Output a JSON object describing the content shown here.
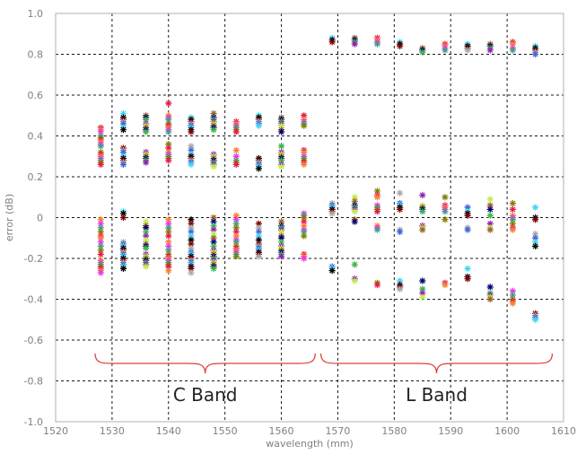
{
  "chart_data": {
    "type": "scatter",
    "title": "",
    "xlabel": "wavelength (mm)",
    "ylabel": "error (dB)",
    "xlim": [
      1520,
      1610
    ],
    "ylim": [
      -1.0,
      1.0
    ],
    "x_ticks": [
      "1520",
      "1530",
      "1540",
      "1550",
      "1560",
      "1570",
      "1580",
      "1590",
      "1600",
      "1610"
    ],
    "y_ticks": [
      "1.0",
      "0.8",
      "0.6",
      "0.4",
      "0.2",
      "0",
      "-0.2",
      "-0.4",
      "-0.6",
      "-0.8",
      "-1.0"
    ],
    "grid": true,
    "marker": "*",
    "colors": [
      "#e6194b",
      "#3cb44b",
      "#4363d8",
      "#f58231",
      "#911eb4",
      "#42d4f4",
      "#f032e6",
      "#bfef45",
      "#000000",
      "#469990",
      "#9a6324",
      "#800000",
      "#808000",
      "#000075",
      "#a9a9a9"
    ],
    "annotations": [
      {
        "text": "C Band",
        "x_range": [
          1527,
          1566
        ],
        "brace_color": "#e03c3c"
      },
      {
        "text": "L Band",
        "x_range": [
          1567,
          1608
        ],
        "brace_color": "#e03c3c"
      }
    ],
    "clusters": [
      {
        "x": 1528,
        "ys": [
          0.44,
          0.43,
          0.42,
          0.4,
          0.39,
          0.38,
          0.37,
          0.36,
          0.35,
          0.32,
          0.31,
          0.3,
          0.29,
          0.28,
          0.27,
          0.26,
          -0.01,
          -0.03,
          -0.05,
          -0.07,
          -0.09,
          -0.1,
          -0.12,
          -0.14,
          -0.16,
          -0.18,
          -0.21,
          -0.22,
          -0.23,
          -0.24,
          -0.25,
          -0.26,
          -0.27
        ]
      },
      {
        "x": 1532,
        "ys": [
          0.51,
          0.49,
          0.48,
          0.47,
          0.46,
          0.44,
          0.43,
          0.34,
          0.33,
          0.32,
          0.3,
          0.29,
          0.28,
          0.27,
          0.26,
          0.03,
          0.02,
          0.0,
          -0.12,
          -0.13,
          -0.14,
          -0.15,
          -0.16,
          -0.17,
          -0.18,
          -0.19,
          -0.2,
          -0.21,
          -0.22,
          -0.23,
          -0.24,
          -0.25
        ]
      },
      {
        "x": 1536,
        "ys": [
          0.5,
          0.49,
          0.48,
          0.46,
          0.45,
          0.44,
          0.43,
          0.42,
          0.32,
          0.31,
          0.3,
          0.29,
          0.28,
          0.27,
          -0.02,
          -0.04,
          -0.05,
          -0.07,
          -0.09,
          -0.11,
          -0.13,
          -0.14,
          -0.15,
          -0.18,
          -0.19,
          -0.2,
          -0.21,
          -0.22,
          -0.23,
          -0.24
        ]
      },
      {
        "x": 1540,
        "ys": [
          0.56,
          0.5,
          0.49,
          0.48,
          0.46,
          0.45,
          0.44,
          0.43,
          0.42,
          0.36,
          0.34,
          0.32,
          0.31,
          0.3,
          0.29,
          0.28,
          -0.01,
          -0.03,
          -0.05,
          -0.07,
          -0.09,
          -0.12,
          -0.14,
          -0.16,
          -0.18,
          -0.19,
          -0.2,
          -0.21,
          -0.22,
          -0.23,
          -0.24,
          -0.26
        ]
      },
      {
        "x": 1544,
        "ys": [
          0.49,
          0.48,
          0.47,
          0.46,
          0.45,
          0.44,
          0.43,
          0.42,
          0.35,
          0.33,
          0.31,
          0.3,
          0.29,
          0.28,
          0.27,
          0.26,
          -0.01,
          -0.03,
          -0.05,
          -0.07,
          -0.09,
          -0.11,
          -0.13,
          -0.15,
          -0.17,
          -0.18,
          -0.19,
          -0.2,
          -0.21,
          -0.22,
          -0.23,
          -0.24,
          -0.25,
          -0.27
        ]
      },
      {
        "x": 1548,
        "ys": [
          0.51,
          0.49,
          0.48,
          0.47,
          0.46,
          0.45,
          0.44,
          0.43,
          0.31,
          0.3,
          0.29,
          0.28,
          0.27,
          0.26,
          0.25,
          0.0,
          -0.02,
          -0.04,
          -0.06,
          -0.08,
          -0.1,
          -0.12,
          -0.14,
          -0.16,
          -0.17,
          -0.18,
          -0.19,
          -0.2,
          -0.21,
          -0.22,
          -0.23,
          -0.24,
          -0.25
        ]
      },
      {
        "x": 1552,
        "ys": [
          0.47,
          0.46,
          0.45,
          0.44,
          0.43,
          0.42,
          0.33,
          0.3,
          0.28,
          0.27,
          0.26,
          0.01,
          -0.01,
          -0.03,
          -0.05,
          -0.07,
          -0.09,
          -0.11,
          -0.12,
          -0.14,
          -0.15,
          -0.16,
          -0.17,
          -0.18,
          -0.19
        ]
      },
      {
        "x": 1556,
        "ys": [
          0.5,
          0.49,
          0.48,
          0.47,
          0.46,
          0.45,
          0.29,
          0.28,
          0.27,
          0.26,
          0.25,
          0.24,
          -0.03,
          -0.05,
          -0.07,
          -0.09,
          -0.11,
          -0.13,
          -0.14,
          -0.15,
          -0.16,
          -0.17,
          -0.18,
          -0.19
        ]
      },
      {
        "x": 1560,
        "ys": [
          0.49,
          0.48,
          0.47,
          0.46,
          0.45,
          0.43,
          0.42,
          0.35,
          0.32,
          0.31,
          0.3,
          0.29,
          0.28,
          0.26,
          0.25,
          -0.02,
          -0.04,
          -0.05,
          -0.06,
          -0.07,
          -0.09,
          -0.1,
          -0.12,
          -0.14,
          -0.15,
          -0.16,
          -0.17,
          -0.18,
          -0.19
        ]
      },
      {
        "x": 1564,
        "ys": [
          0.5,
          0.48,
          0.47,
          0.46,
          0.45,
          0.33,
          0.32,
          0.3,
          0.29,
          0.28,
          0.27,
          0.26,
          0.02,
          0.01,
          0.0,
          -0.02,
          -0.04,
          -0.06,
          -0.07,
          -0.09,
          -0.18,
          -0.19,
          -0.2
        ]
      },
      {
        "x": 1569,
        "ys": [
          0.88,
          0.87,
          0.86,
          0.07,
          0.06,
          0.05,
          0.04,
          0.03,
          0.02,
          -0.24,
          -0.25,
          -0.26
        ]
      },
      {
        "x": 1573,
        "ys": [
          0.88,
          0.87,
          0.86,
          0.85,
          0.1,
          0.08,
          0.06,
          0.05,
          0.04,
          0.03,
          -0.01,
          -0.02,
          -0.23,
          -0.3,
          -0.31
        ]
      },
      {
        "x": 1577,
        "ys": [
          0.88,
          0.87,
          0.86,
          0.85,
          0.13,
          0.11,
          0.1,
          0.06,
          0.05,
          0.04,
          0.03,
          -0.04,
          -0.05,
          -0.06,
          -0.32,
          -0.33
        ]
      },
      {
        "x": 1581,
        "ys": [
          0.86,
          0.85,
          0.84,
          0.12,
          0.07,
          0.06,
          0.05,
          0.04,
          -0.06,
          -0.07,
          -0.31,
          -0.33,
          -0.34,
          -0.35
        ]
      },
      {
        "x": 1585,
        "ys": [
          0.83,
          0.82,
          0.81,
          0.11,
          0.06,
          0.05,
          0.04,
          0.03,
          -0.04,
          -0.05,
          -0.06,
          -0.31,
          -0.35,
          -0.37,
          -0.39
        ]
      },
      {
        "x": 1589,
        "ys": [
          0.85,
          0.84,
          0.83,
          0.82,
          0.1,
          0.06,
          0.05,
          0.04,
          0.03,
          -0.01,
          -0.32,
          -0.33
        ]
      },
      {
        "x": 1593,
        "ys": [
          0.85,
          0.84,
          0.83,
          0.82,
          0.05,
          0.03,
          0.02,
          0.01,
          -0.05,
          -0.06,
          -0.25,
          -0.29,
          -0.3
        ]
      },
      {
        "x": 1597,
        "ys": [
          0.85,
          0.84,
          0.83,
          0.82,
          0.09,
          0.06,
          0.04,
          0.01,
          -0.03,
          -0.05,
          -0.06,
          -0.34,
          -0.37,
          -0.38,
          -0.39,
          -0.4
        ]
      },
      {
        "x": 1601,
        "ys": [
          0.86,
          0.85,
          0.83,
          0.82,
          0.07,
          0.04,
          0.01,
          0.0,
          -0.01,
          -0.03,
          -0.05,
          -0.06,
          -0.36,
          -0.38,
          -0.4,
          -0.41,
          -0.42
        ]
      },
      {
        "x": 1605,
        "ys": [
          0.84,
          0.83,
          0.82,
          0.81,
          0.8,
          0.05,
          0.0,
          -0.01,
          -0.08,
          -0.1,
          -0.12,
          -0.14,
          -0.47,
          -0.48,
          -0.49,
          -0.5
        ]
      }
    ]
  }
}
